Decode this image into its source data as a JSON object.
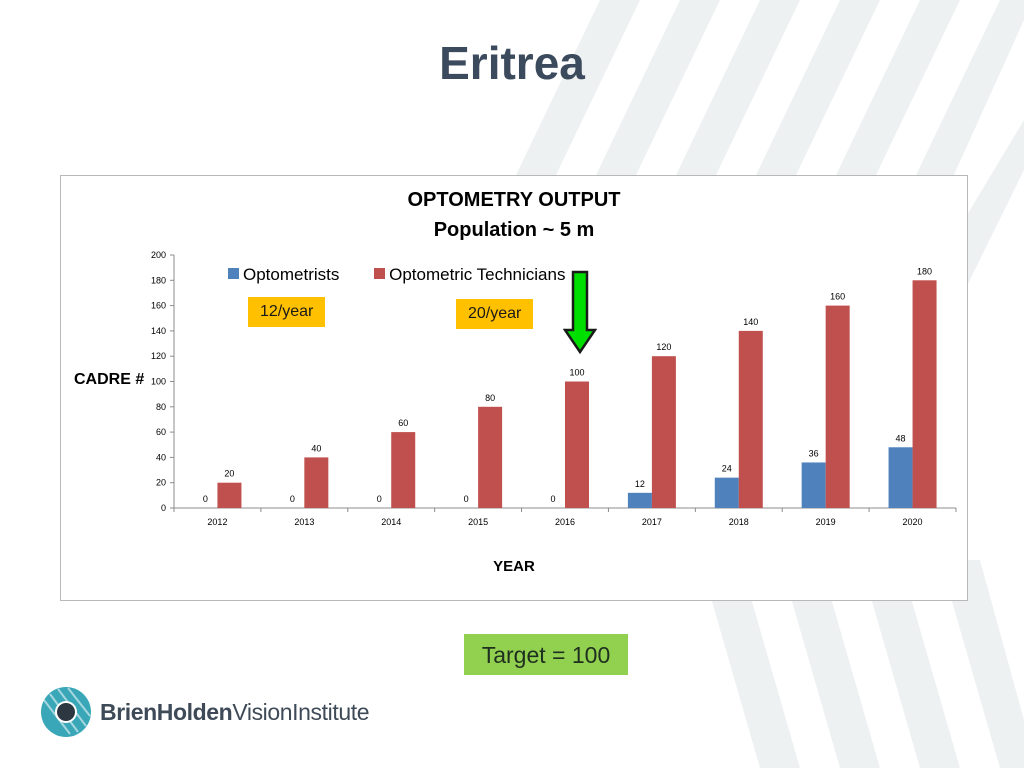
{
  "slide": {
    "title": "Eritrea",
    "target_label": "Target = 100",
    "logo": {
      "name_bold": "BrienHolden",
      "name_regular": "VisionInstitute",
      "icon": "eye-logo-icon"
    }
  },
  "annotations": {
    "rate_optometrists": "12/year",
    "rate_technicians": "20/year",
    "arrow": {
      "icon": "down-arrow-icon",
      "color": "#00dd00"
    }
  },
  "chart_data": {
    "type": "bar",
    "title": "OPTOMETRY OUTPUT",
    "subtitle": "Population ~ 5 m",
    "xlabel": "YEAR",
    "ylabel": "CADRE #",
    "categories": [
      "2012",
      "2013",
      "2014",
      "2015",
      "2016",
      "2017",
      "2018",
      "2019",
      "2020"
    ],
    "series": [
      {
        "name": "Optometrists",
        "color": "#4f81bd",
        "values": [
          0,
          0,
          0,
          0,
          0,
          12,
          24,
          36,
          48
        ]
      },
      {
        "name": "Optometric Technicians",
        "color": "#c0504d",
        "values": [
          20,
          40,
          60,
          80,
          100,
          120,
          140,
          160,
          180
        ]
      }
    ],
    "ylim": [
      0,
      200
    ],
    "yticks": [
      0,
      20,
      40,
      60,
      80,
      100,
      120,
      140,
      160,
      180,
      200
    ],
    "grid": false,
    "legend": "top-left"
  }
}
